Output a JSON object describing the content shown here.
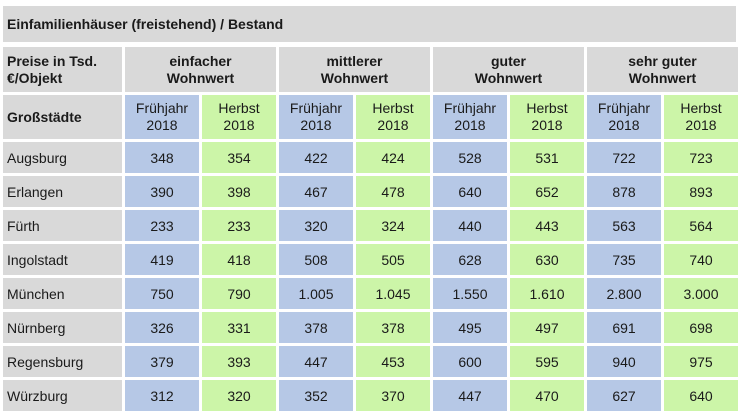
{
  "title": "Einfamilienhäuser (freistehend) / Bestand",
  "header": {
    "first": [
      "Preise in Tsd.",
      "€/Objekt"
    ],
    "groups": [
      [
        "einfacher",
        "Wohnwert"
      ],
      [
        "mittlerer",
        "Wohnwert"
      ],
      [
        "guter",
        "Wohnwert"
      ],
      [
        "sehr guter",
        "Wohnwert"
      ]
    ]
  },
  "subheader": {
    "first": "Großstädte",
    "spring": [
      "Frühjahr",
      "2018"
    ],
    "autumn": [
      "Herbst",
      "2018"
    ]
  },
  "rows": [
    {
      "city": "Augsburg",
      "values": [
        "348",
        "354",
        "422",
        "424",
        "528",
        "531",
        "722",
        "723"
      ]
    },
    {
      "city": "Erlangen",
      "values": [
        "390",
        "398",
        "467",
        "478",
        "640",
        "652",
        "878",
        "893"
      ]
    },
    {
      "city": "Fürth",
      "values": [
        "233",
        "233",
        "320",
        "324",
        "440",
        "443",
        "563",
        "564"
      ]
    },
    {
      "city": "Ingolstadt",
      "values": [
        "419",
        "418",
        "508",
        "505",
        "628",
        "630",
        "735",
        "740"
      ]
    },
    {
      "city": "München",
      "values": [
        "750",
        "790",
        "1.005",
        "1.045",
        "1.550",
        "1.610",
        "2.800",
        "3.000"
      ]
    },
    {
      "city": "Nürnberg",
      "values": [
        "326",
        "331",
        "378",
        "378",
        "495",
        "497",
        "691",
        "698"
      ]
    },
    {
      "city": "Regensburg",
      "values": [
        "379",
        "393",
        "447",
        "453",
        "600",
        "595",
        "940",
        "975"
      ]
    },
    {
      "city": "Würzburg",
      "values": [
        "312",
        "320",
        "352",
        "370",
        "447",
        "470",
        "627",
        "640"
      ]
    }
  ],
  "colors": {
    "spring": "#b6c8e6",
    "autumn": "#ccf5a8",
    "header": "#d9d9d9"
  }
}
